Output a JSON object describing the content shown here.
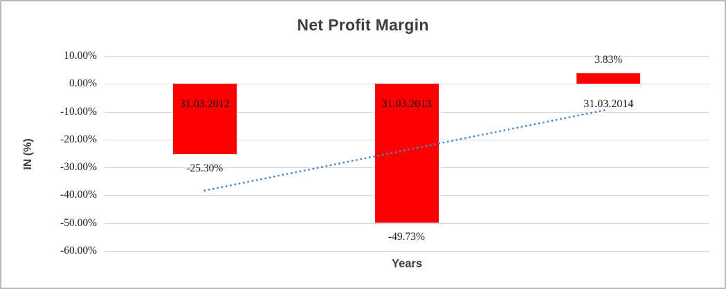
{
  "chart_data": {
    "type": "bar",
    "title": "Net Profit Margin",
    "xlabel": "Years",
    "ylabel": "IN (%)",
    "categories": [
      "31.03.2012",
      "31.03.2013",
      "31.03.2014"
    ],
    "values": [
      -25.3,
      -49.73,
      3.83
    ],
    "value_labels": [
      "-25.30%",
      "-49.73%",
      "3.83%"
    ],
    "yticks": [
      {
        "value": 10,
        "label": "10.00%"
      },
      {
        "value": 0,
        "label": "0.00%"
      },
      {
        "value": -10,
        "label": "-10.00%"
      },
      {
        "value": -20,
        "label": "-20.00%"
      },
      {
        "value": -30,
        "label": "-30.00%"
      },
      {
        "value": -40,
        "label": "-40.00%"
      },
      {
        "value": -50,
        "label": "-50.00%"
      },
      {
        "value": -60,
        "label": "-60.00%"
      }
    ],
    "ylim": [
      -60,
      10
    ],
    "grid": true,
    "legend": "none",
    "bar_color": "#FF0000",
    "trendline": {
      "type": "linear",
      "style": "dotted",
      "color": "#4A86C8",
      "endpoint_values": [
        -38.3,
        -9.17
      ]
    },
    "colors": {
      "grid": "#D9D9D9",
      "title_text": "#3D3D3D",
      "tick_text": "#1A1A1A",
      "label_text": "#151515",
      "border": "#B9B9B9"
    }
  }
}
